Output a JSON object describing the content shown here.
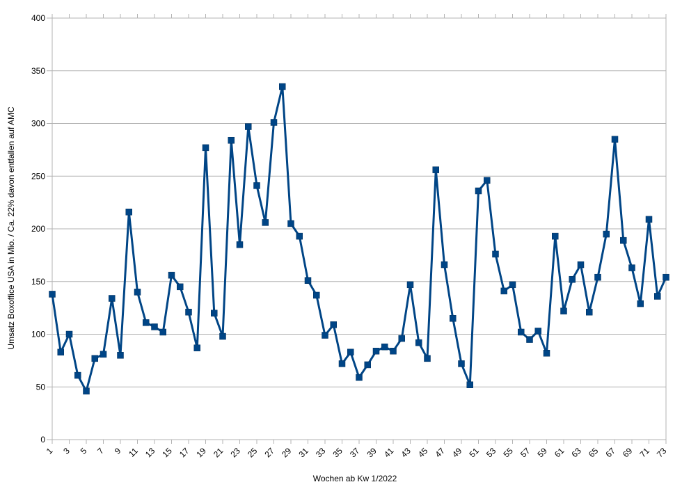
{
  "chart_data": {
    "type": "line",
    "title": "",
    "xlabel": "Wochen ab Kw 1/2022",
    "ylabel": "Umsatz Boxoffice USA in Mio. / Ca. 22% davon entfallen auf AMC",
    "ylim": [
      0,
      400
    ],
    "yticks": [
      0,
      50,
      100,
      150,
      200,
      250,
      300,
      350,
      400
    ],
    "x_tick_labels": [
      1,
      3,
      5,
      7,
      9,
      11,
      13,
      15,
      17,
      19,
      21,
      23,
      25,
      27,
      29,
      31,
      33,
      35,
      37,
      39,
      41,
      43,
      45,
      47,
      49,
      51,
      53,
      55,
      57,
      59,
      61,
      63,
      65,
      67,
      69,
      71,
      73
    ],
    "grid": "horizontal",
    "legend": "none",
    "line_color": "#004586",
    "x": [
      1,
      2,
      3,
      4,
      5,
      6,
      7,
      8,
      9,
      10,
      11,
      12,
      13,
      14,
      15,
      16,
      17,
      18,
      19,
      20,
      21,
      22,
      23,
      24,
      25,
      26,
      27,
      28,
      29,
      30,
      31,
      32,
      33,
      34,
      35,
      36,
      37,
      38,
      39,
      40,
      41,
      42,
      43,
      44,
      45,
      46,
      47,
      48,
      49,
      50,
      51,
      52,
      53,
      54,
      55,
      56,
      57,
      58,
      59,
      60,
      61,
      62,
      63,
      64,
      65,
      66,
      67,
      68,
      69,
      70,
      71,
      72,
      73
    ],
    "values": [
      138,
      83,
      100,
      61,
      46,
      77,
      81,
      134,
      80,
      216,
      140,
      111,
      107,
      102,
      156,
      145,
      121,
      87,
      277,
      120,
      98,
      284,
      185,
      297,
      241,
      206,
      301,
      335,
      205,
      193,
      151,
      137,
      99,
      109,
      72,
      83,
      59,
      71,
      84,
      88,
      84,
      96,
      147,
      92,
      77,
      256,
      166,
      115,
      72,
      52,
      236,
      246,
      176,
      141,
      147,
      102,
      95,
      103,
      82,
      193,
      122,
      152,
      166,
      121,
      154,
      195,
      285,
      189,
      163,
      129,
      209,
      136,
      154
    ]
  }
}
